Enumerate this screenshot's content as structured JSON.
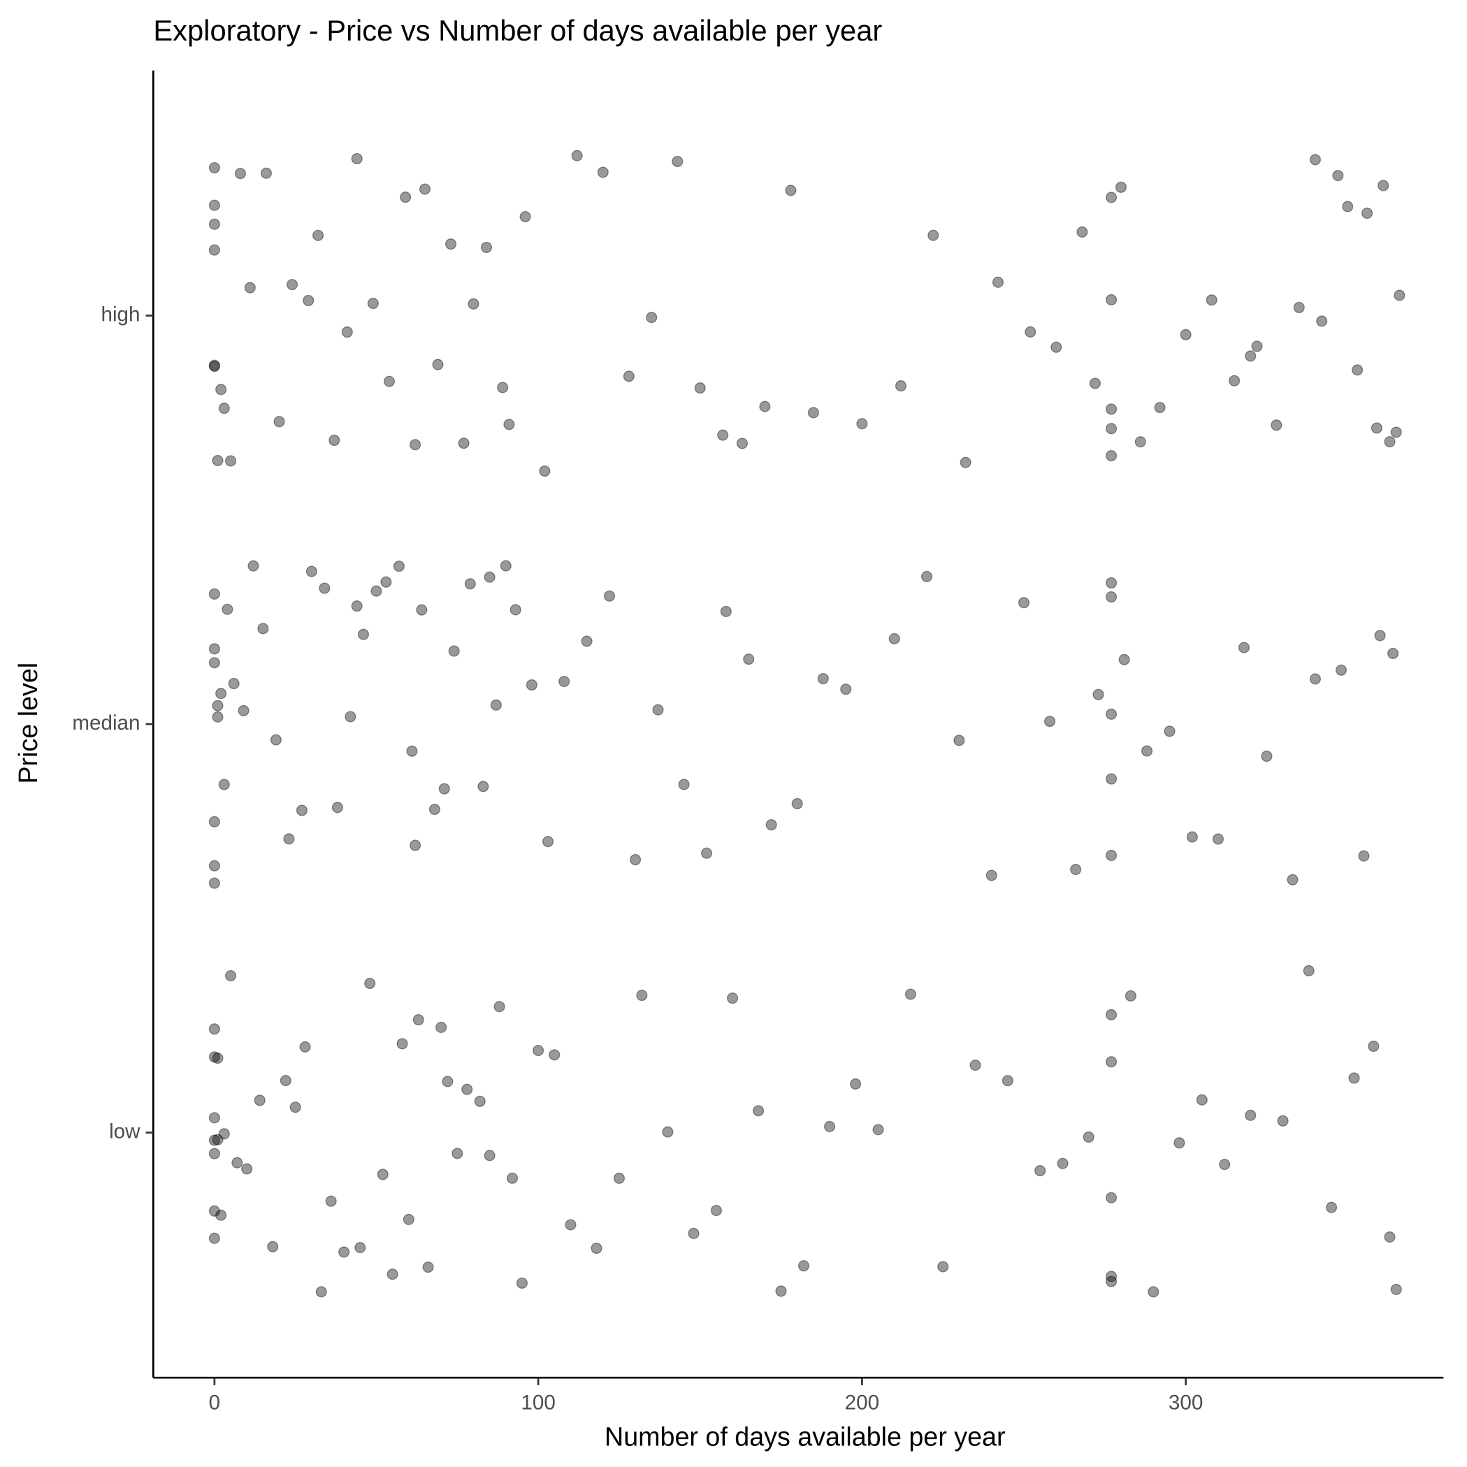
{
  "chart_data": {
    "type": "scatter",
    "title": "Exploratory - Price vs Number of days available per year",
    "x_label": "Number of days available per year",
    "y_label": "Price level",
    "categories": [
      "low",
      "median",
      "high"
    ],
    "x": [
      [
        0,
        0,
        0,
        0,
        1,
        0,
        2,
        3,
        0,
        1,
        5,
        7,
        10,
        14,
        18,
        22,
        25,
        28,
        33,
        36,
        40,
        45,
        48,
        52,
        55,
        58,
        60,
        63,
        66,
        70,
        72,
        75,
        78,
        82,
        85,
        88,
        92,
        95,
        100,
        105,
        110,
        118,
        125,
        132,
        140,
        148,
        155,
        160,
        168,
        175,
        182,
        190,
        198,
        205,
        215,
        225,
        235,
        245,
        255,
        262,
        270,
        277,
        277,
        277,
        277,
        277,
        283,
        290,
        298,
        305,
        312,
        320,
        330,
        338,
        345,
        352,
        358,
        363,
        365,
        0
      ],
      [
        0,
        0,
        0,
        1,
        0,
        2,
        0,
        4,
        6,
        9,
        12,
        15,
        19,
        23,
        27,
        30,
        34,
        38,
        42,
        46,
        50,
        53,
        57,
        61,
        64,
        68,
        71,
        74,
        79,
        83,
        87,
        90,
        93,
        98,
        103,
        108,
        115,
        122,
        130,
        137,
        145,
        152,
        158,
        165,
        172,
        180,
        188,
        195,
        210,
        220,
        230,
        240,
        250,
        258,
        266,
        273,
        277,
        277,
        277,
        277,
        277,
        281,
        288,
        295,
        302,
        310,
        318,
        325,
        333,
        340,
        348,
        355,
        360,
        364,
        0,
        1,
        3,
        62,
        44,
        85
      ],
      [
        0,
        0,
        0,
        0,
        1,
        2,
        0,
        3,
        5,
        8,
        11,
        16,
        20,
        24,
        29,
        32,
        37,
        41,
        44,
        49,
        54,
        59,
        62,
        65,
        69,
        73,
        77,
        80,
        84,
        89,
        91,
        96,
        102,
        112,
        120,
        128,
        135,
        143,
        150,
        157,
        163,
        170,
        178,
        185,
        200,
        212,
        222,
        232,
        242,
        252,
        260,
        268,
        272,
        277,
        277,
        277,
        277,
        277,
        280,
        286,
        292,
        300,
        308,
        315,
        322,
        328,
        335,
        342,
        347,
        350,
        353,
        356,
        359,
        361,
        363,
        365,
        366,
        340,
        320,
        0
      ]
    ],
    "xlim": [
      -18.9,
      379.6
    ],
    "xticks": [
      0,
      100,
      200,
      300
    ],
    "ylim": [
      0.4,
      3.6
    ],
    "color": "#000000",
    "opacity": 0.4
  }
}
